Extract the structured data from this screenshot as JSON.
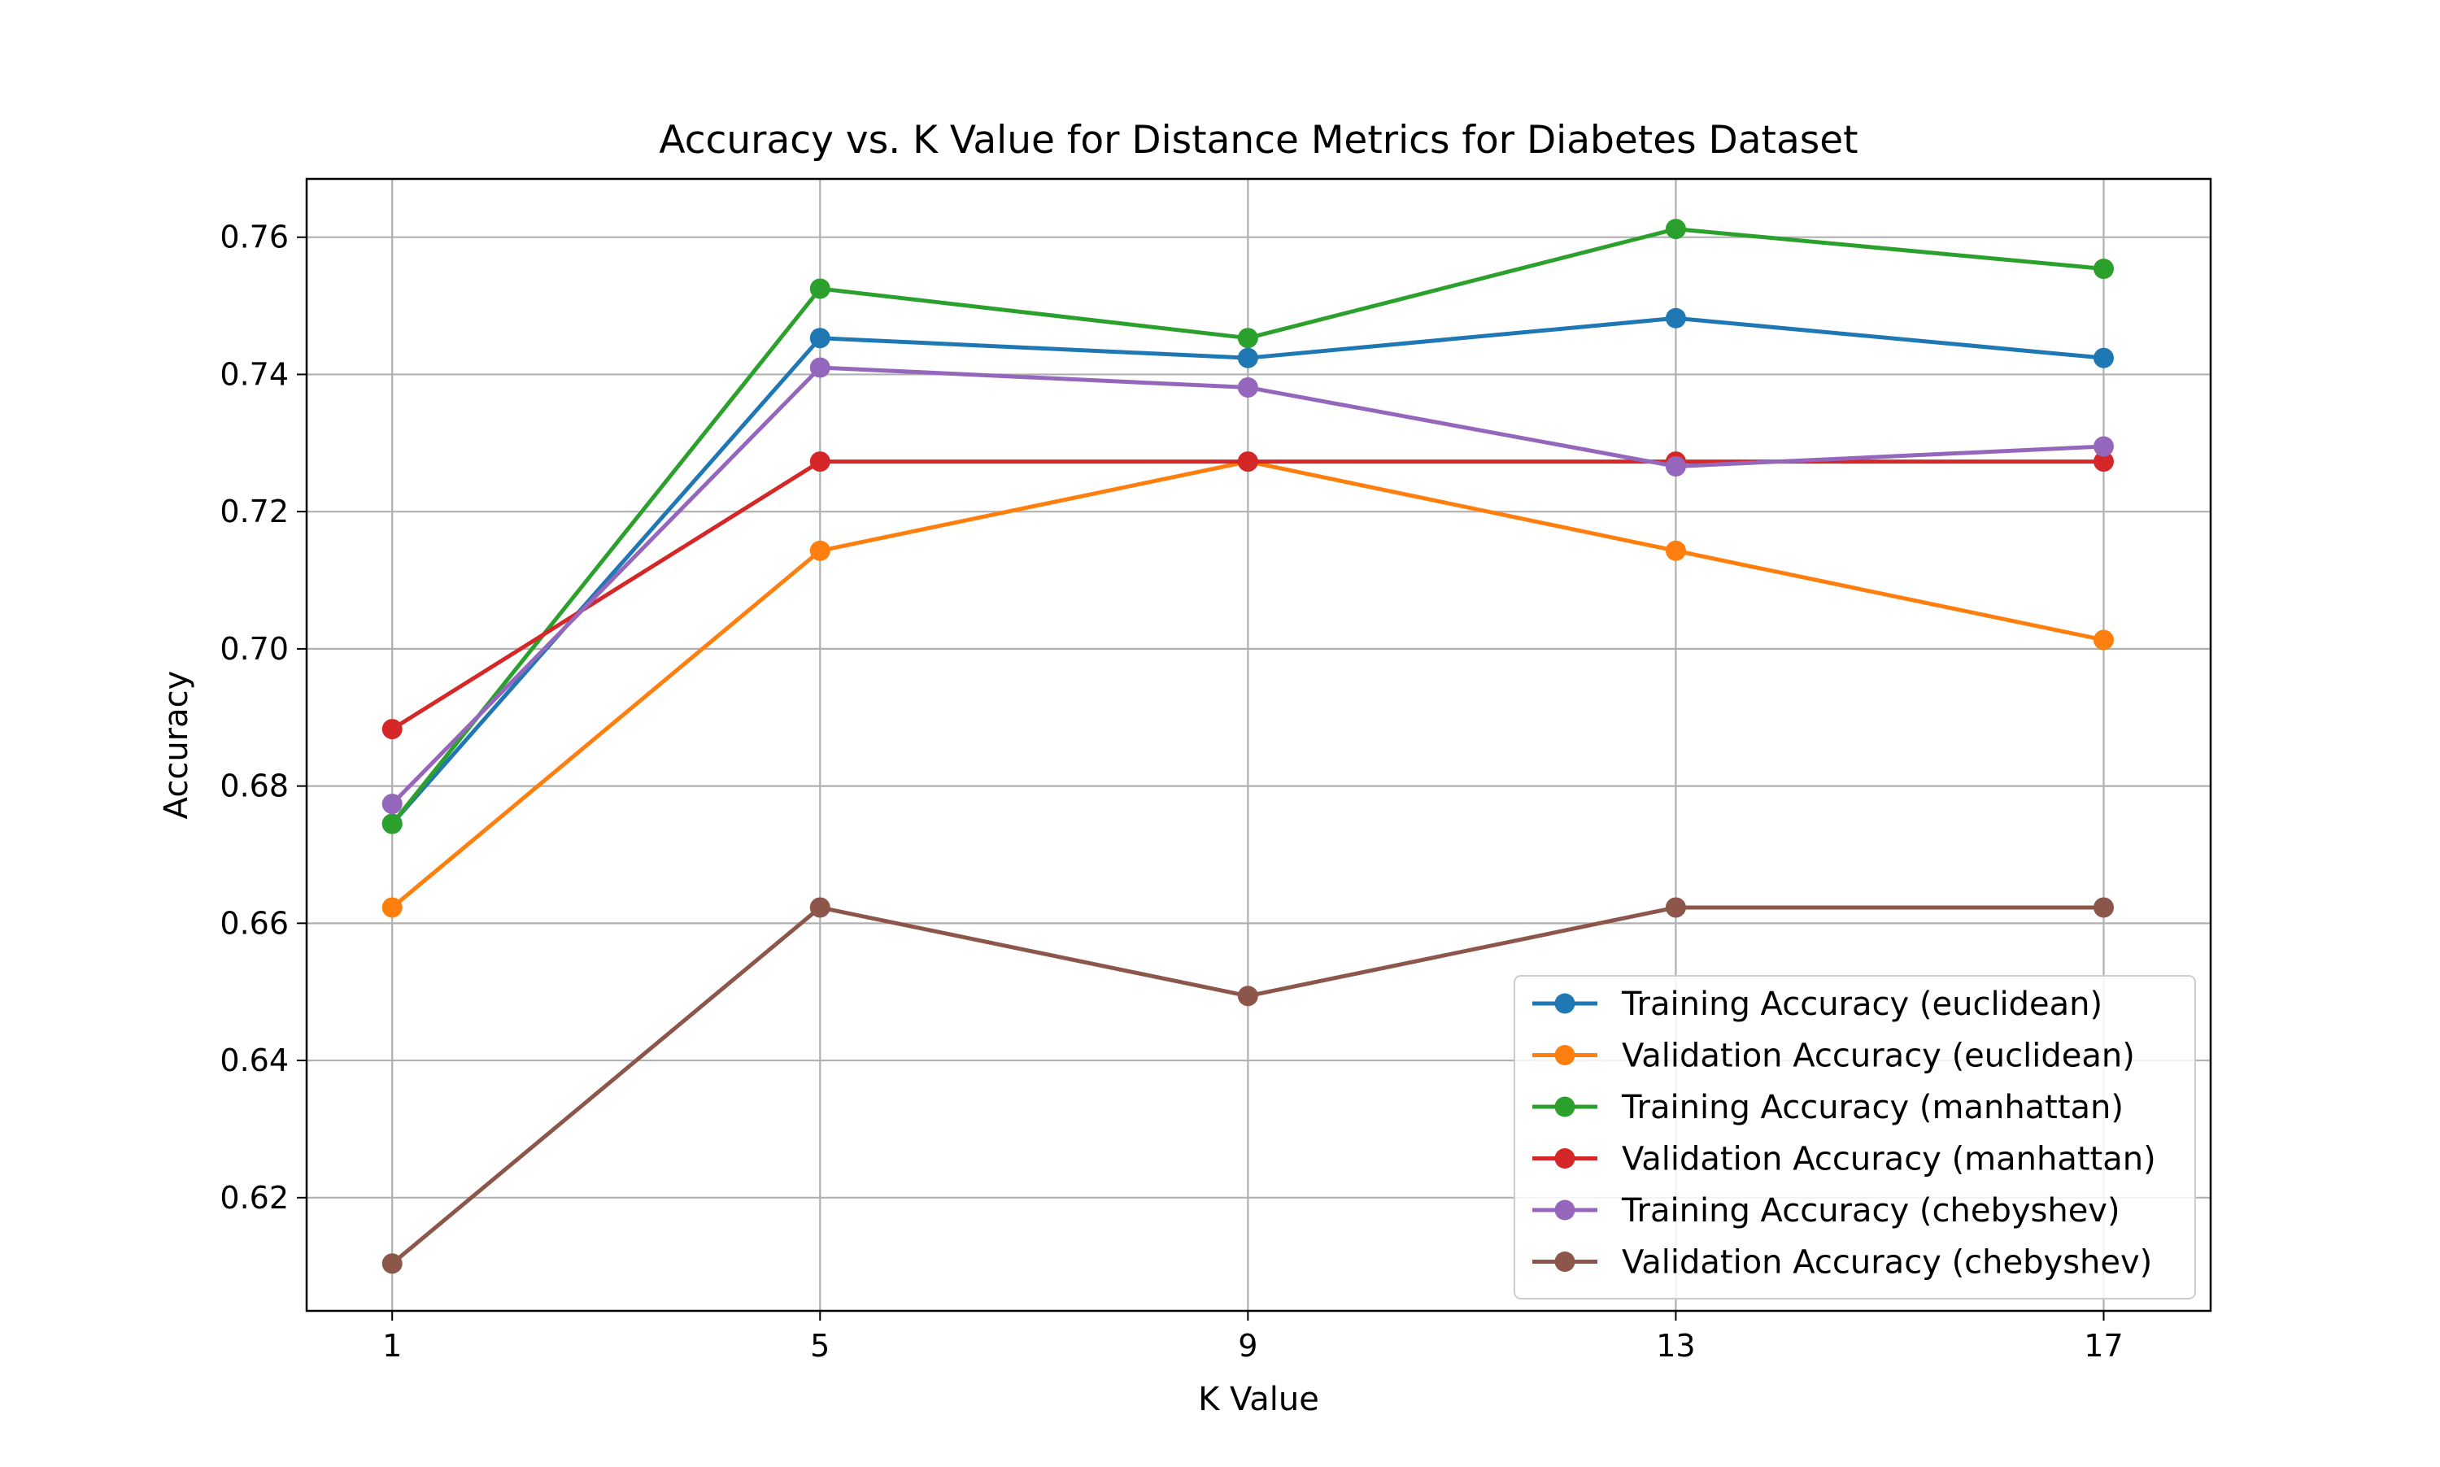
{
  "chart_data": {
    "type": "line",
    "title": "Accuracy vs. K Value for Distance Metrics for Diabetes Dataset",
    "xlabel": "K Value",
    "ylabel": "Accuracy",
    "x": [
      1,
      5,
      9,
      13,
      17
    ],
    "x_ticks": [
      "1",
      "5",
      "9",
      "13",
      "17"
    ],
    "y_ticks": [
      "0.62",
      "0.64",
      "0.66",
      "0.68",
      "0.70",
      "0.72",
      "0.74",
      "0.76"
    ],
    "xlim": [
      0.2,
      18
    ],
    "ylim": [
      0.6035,
      0.7685
    ],
    "grid": true,
    "legend_position": "lower-right",
    "marker": "circle",
    "series": [
      {
        "name": "Training Accuracy (euclidean)",
        "color": "#1f77b4",
        "values": [
          0.6745,
          0.7453,
          0.7424,
          0.7482,
          0.7424
        ]
      },
      {
        "name": "Validation Accuracy (euclidean)",
        "color": "#ff7f0e",
        "values": [
          0.6623,
          0.7143,
          0.7273,
          0.7143,
          0.7013
        ]
      },
      {
        "name": "Training Accuracy (manhattan)",
        "color": "#2ca02c",
        "values": [
          0.6745,
          0.7525,
          0.7453,
          0.7612,
          0.7554
        ]
      },
      {
        "name": "Validation Accuracy (manhattan)",
        "color": "#d62728",
        "values": [
          0.6883,
          0.7273,
          0.7273,
          0.7273,
          0.7273
        ]
      },
      {
        "name": "Training Accuracy (chebyshev)",
        "color": "#9467bd",
        "values": [
          0.6774,
          0.741,
          0.7381,
          0.7266,
          0.7295
        ]
      },
      {
        "name": "Validation Accuracy (chebyshev)",
        "color": "#8c564b",
        "values": [
          0.6104,
          0.6623,
          0.6494,
          0.6623,
          0.6623
        ]
      }
    ]
  }
}
